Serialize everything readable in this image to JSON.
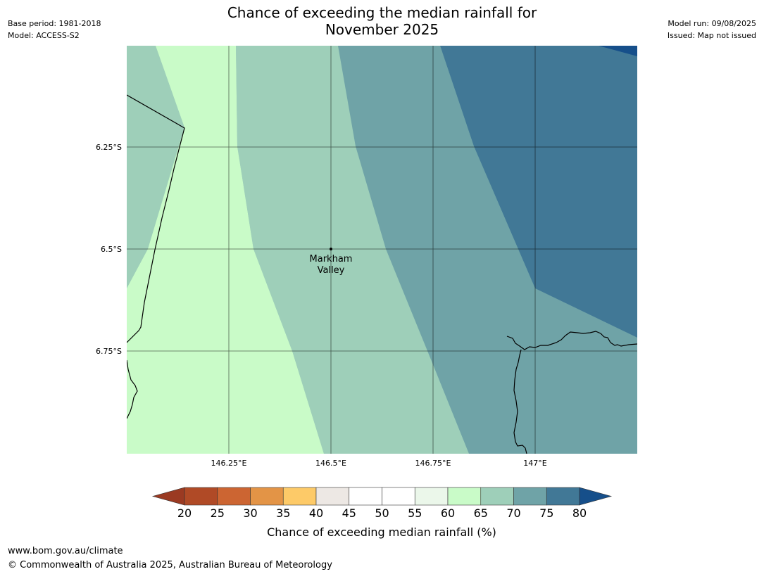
{
  "header": {
    "title_line1": "Chance of exceeding the median rainfall for",
    "title_line2": "November 2025",
    "base_period": "Base period: 1981-2018",
    "model": "Model: ACCESS-S2",
    "model_run": "Model run: 09/08/2025",
    "issued": "Issued: Map not issued"
  },
  "map": {
    "lat_ticks": [
      "6.25°S",
      "6.5°S",
      "6.75°S"
    ],
    "lon_ticks": [
      "146.25°E",
      "146.5°E",
      "146.75°E",
      "147°E"
    ],
    "place": {
      "name_line1": "Markham",
      "name_line2": "Valley",
      "lon": 146.5,
      "lat": -6.5
    },
    "zone_colors": {
      "60_65": "#c9fbc8",
      "65_70": "#9ecfb9",
      "70_75": "#6fa3a7",
      "75_80": "#417896",
      "above_80": "#164f8a"
    },
    "coastline_color": "#000000",
    "grid_color": "#000000"
  },
  "colorbar": {
    "title": "Chance of exceeding median rainfall (%)",
    "tick_labels": [
      "20",
      "25",
      "30",
      "35",
      "40",
      "45",
      "50",
      "55",
      "60",
      "65",
      "70",
      "75",
      "80"
    ],
    "below_color": "#9b3a22",
    "above_color": "#164f8a",
    "colors": [
      "#b04a26",
      "#cc6532",
      "#e39446",
      "#fdca68",
      "#ede8e4",
      "#ffffff",
      "#ffffff",
      "#ebf7ea",
      "#c9fbc8",
      "#9ecfb9",
      "#6fa3a7",
      "#417896"
    ]
  },
  "footer": {
    "url": "www.bom.gov.au/climate",
    "copyright": "© Commonwealth of Australia 2025, Australian Bureau of Meteorology"
  }
}
